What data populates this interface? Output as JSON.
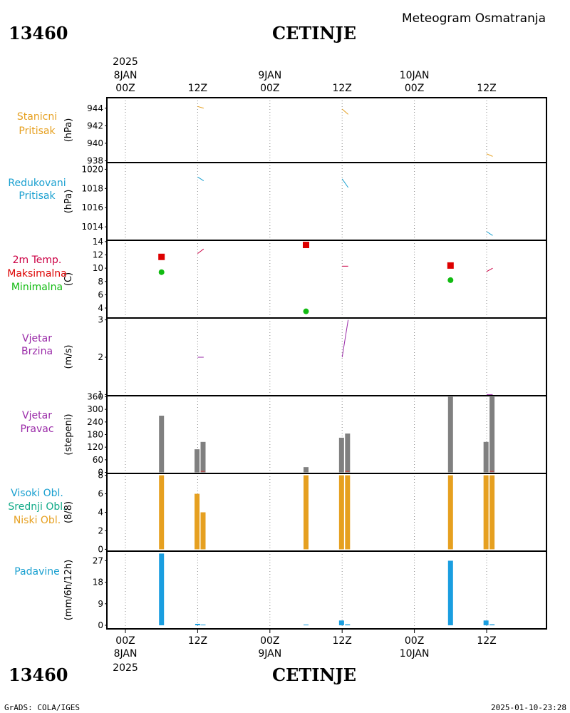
{
  "header": {
    "station_id": "13460",
    "station_name": "CETINJE",
    "subtitle": "Meteogram Osmatranja"
  },
  "time_axis": {
    "year": "2025",
    "ticks": [
      {
        "hours": 0,
        "hour_label": "00Z",
        "day_label": "8JAN"
      },
      {
        "hours": 12,
        "hour_label": "12Z",
        "day_label": ""
      },
      {
        "hours": 24,
        "hour_label": "00Z",
        "day_label": "9JAN"
      },
      {
        "hours": 36,
        "hour_label": "12Z",
        "day_label": ""
      },
      {
        "hours": 48,
        "hour_label": "00Z",
        "day_label": "10JAN"
      },
      {
        "hours": 60,
        "hour_label": "12Z",
        "day_label": ""
      }
    ]
  },
  "footer": {
    "left": "GrADS: COLA/IGES",
    "right": "2025-01-10-23:28"
  },
  "chart_data": [
    {
      "id": "stanicni-pritisak",
      "type": "line",
      "label_lines": [
        "Stanicni",
        "Pritisak"
      ],
      "label_colors": [
        "#e6a020",
        "#e6a020"
      ],
      "unit": "(hPa)",
      "ylim": [
        937.8,
        945.2
      ],
      "yticks": [
        938,
        940,
        942,
        944
      ],
      "series": [
        {
          "color": "#e6a020",
          "segments": [
            [
              [
                12.0,
                944.2
              ],
              [
                13.0,
                944.0
              ]
            ],
            [
              [
                36.0,
                943.9
              ],
              [
                37.0,
                943.3
              ]
            ],
            [
              [
                60.0,
                938.8
              ],
              [
                61.0,
                938.5
              ]
            ]
          ]
        }
      ]
    },
    {
      "id": "redukovani-pritisak",
      "type": "line",
      "label_lines": [
        "Redukovani",
        "Pritisak"
      ],
      "label_colors": [
        "#1aa0d0",
        "#1aa0d0"
      ],
      "unit": "(hPa)",
      "ylim": [
        1012.6,
        1020.7
      ],
      "yticks": [
        1014,
        1016,
        1018,
        1020
      ],
      "series": [
        {
          "color": "#1aa0d0",
          "segments": [
            [
              [
                12.0,
                1019.2
              ],
              [
                13.0,
                1018.8
              ]
            ],
            [
              [
                36.0,
                1019.0
              ],
              [
                37.0,
                1018.1
              ]
            ],
            [
              [
                60.0,
                1013.5
              ],
              [
                61.0,
                1013.1
              ]
            ]
          ]
        }
      ]
    },
    {
      "id": "temperatura",
      "type": "line",
      "label_lines": [
        "2m Temp.",
        "Maksimalna",
        "Minimalna"
      ],
      "label_colors": [
        "#cc0044",
        "#dd0000",
        "#11bb11"
      ],
      "unit": "(C)",
      "ylim": [
        2.5,
        14.2
      ],
      "yticks": [
        4,
        6,
        8,
        10,
        12,
        14
      ],
      "series": [
        {
          "name": "2m Temp.",
          "color": "#cc0044",
          "segments": [
            [
              [
                12.0,
                12.2
              ],
              [
                13.0,
                12.9
              ]
            ],
            [
              [
                36.0,
                10.3
              ],
              [
                37.0,
                10.3
              ]
            ],
            [
              [
                60.0,
                9.5
              ],
              [
                61.0,
                10.0
              ]
            ]
          ]
        }
      ],
      "max_points": {
        "color": "#dd0000",
        "x": [
          6,
          30,
          54
        ],
        "y": [
          11.7,
          13.5,
          10.4
        ]
      },
      "min_points": {
        "color": "#11bb11",
        "x": [
          6,
          30,
          54
        ],
        "y": [
          9.4,
          3.5,
          8.2
        ]
      }
    },
    {
      "id": "vjetar-brzina",
      "type": "line",
      "label_lines": [
        "Vjetar",
        "Brzina"
      ],
      "label_colors": [
        "#9a2aa8",
        "#9a2aa8"
      ],
      "unit": "(m/s)",
      "ylim": [
        0.97,
        3.05
      ],
      "yticks": [
        1,
        2,
        3
      ],
      "series": [
        {
          "color": "#9a2aa8",
          "segments": [
            [
              [
                12.0,
                2.0
              ],
              [
                13.0,
                2.0
              ]
            ],
            [
              [
                36.0,
                2.0
              ],
              [
                37.0,
                3.0
              ]
            ],
            [
              [
                60.0,
                1.0
              ],
              [
                61.0,
                1.0
              ]
            ]
          ]
        }
      ]
    },
    {
      "id": "vjetar-pravac",
      "type": "bar",
      "label_lines": [
        "Vjetar",
        "Pravac"
      ],
      "label_colors": [
        "#9a2aa8",
        "#9a2aa8"
      ],
      "unit": "(stepeni)",
      "ylim": [
        -5,
        365
      ],
      "yticks": [
        0,
        60,
        120,
        180,
        240,
        300,
        360
      ],
      "bars": [
        {
          "x": 6.0,
          "value": 270,
          "color": "#808080"
        },
        {
          "x": 11.9,
          "value": 110,
          "color": "#808080"
        },
        {
          "x": 12.9,
          "value": 145,
          "color": "#808080"
        },
        {
          "x": 30.0,
          "value": 25,
          "color": "#808080"
        },
        {
          "x": 35.9,
          "value": 165,
          "color": "#808080"
        },
        {
          "x": 36.9,
          "value": 185,
          "color": "#808080"
        },
        {
          "x": 54.0,
          "value": 360,
          "color": "#808080"
        },
        {
          "x": 59.9,
          "value": 145,
          "color": "#808080"
        },
        {
          "x": 60.9,
          "value": 360,
          "color": "#808080"
        }
      ],
      "series": [
        {
          "color": "#dd3333",
          "segments": [
            [
              [
                12.5,
                5
              ],
              [
                13.2,
                5
              ]
            ],
            [
              [
                36.5,
                5
              ],
              [
                37.2,
                5
              ]
            ],
            [
              [
                60.5,
                5
              ],
              [
                61.2,
                5
              ]
            ]
          ]
        }
      ]
    },
    {
      "id": "oblacnost",
      "type": "bar",
      "label_lines": [
        "Visoki Obl.",
        "Srednji Obl.",
        "Niski Obl."
      ],
      "label_colors": [
        "#1aa0d0",
        "#11aa88",
        "#e6a020"
      ],
      "unit": "(8/8)",
      "ylim": [
        -0.2,
        8.2
      ],
      "yticks": [
        0,
        2,
        4,
        6,
        8
      ],
      "bars": [
        {
          "x": 6.0,
          "value": 8,
          "color": "#e6a020"
        },
        {
          "x": 11.9,
          "value": 6,
          "color": "#e6a020"
        },
        {
          "x": 12.9,
          "value": 2,
          "color": "#88c060"
        },
        {
          "x": 12.9,
          "value": 4,
          "color": "#e6a020"
        },
        {
          "x": 30.0,
          "value": 8,
          "color": "#e6a020"
        },
        {
          "x": 35.9,
          "value": 8,
          "color": "#e6a020"
        },
        {
          "x": 36.9,
          "value": 8,
          "color": "#e6a020"
        },
        {
          "x": 54.0,
          "value": 8,
          "color": "#e6a020"
        },
        {
          "x": 59.9,
          "value": 8,
          "color": "#e6a020"
        },
        {
          "x": 60.9,
          "value": 8,
          "color": "#e6a020"
        }
      ]
    },
    {
      "id": "padavine",
      "type": "bar",
      "label_lines": [
        "Padavine"
      ],
      "label_colors": [
        "#1aa0d0"
      ],
      "unit": "(mm/6h/12h)",
      "ylim": [
        -1.5,
        31
      ],
      "yticks": [
        0,
        9,
        18,
        27
      ],
      "bars": [
        {
          "x": 6.0,
          "value": 30.0,
          "color": "#1a9ee0"
        },
        {
          "x": 12.0,
          "value": 0.6,
          "color": "#1a9ee0"
        },
        {
          "x": 12.9,
          "value": 0.3,
          "color": "#1a9ee0"
        },
        {
          "x": 30.0,
          "value": 0.3,
          "color": "#1a9ee0"
        },
        {
          "x": 35.9,
          "value": 2.0,
          "color": "#1a9ee0"
        },
        {
          "x": 36.9,
          "value": 0.4,
          "color": "#1a9ee0"
        },
        {
          "x": 54.0,
          "value": 27.0,
          "color": "#1a9ee0"
        },
        {
          "x": 59.9,
          "value": 2.0,
          "color": "#1a9ee0"
        },
        {
          "x": 60.9,
          "value": 0.4,
          "color": "#1a9ee0"
        }
      ]
    }
  ]
}
